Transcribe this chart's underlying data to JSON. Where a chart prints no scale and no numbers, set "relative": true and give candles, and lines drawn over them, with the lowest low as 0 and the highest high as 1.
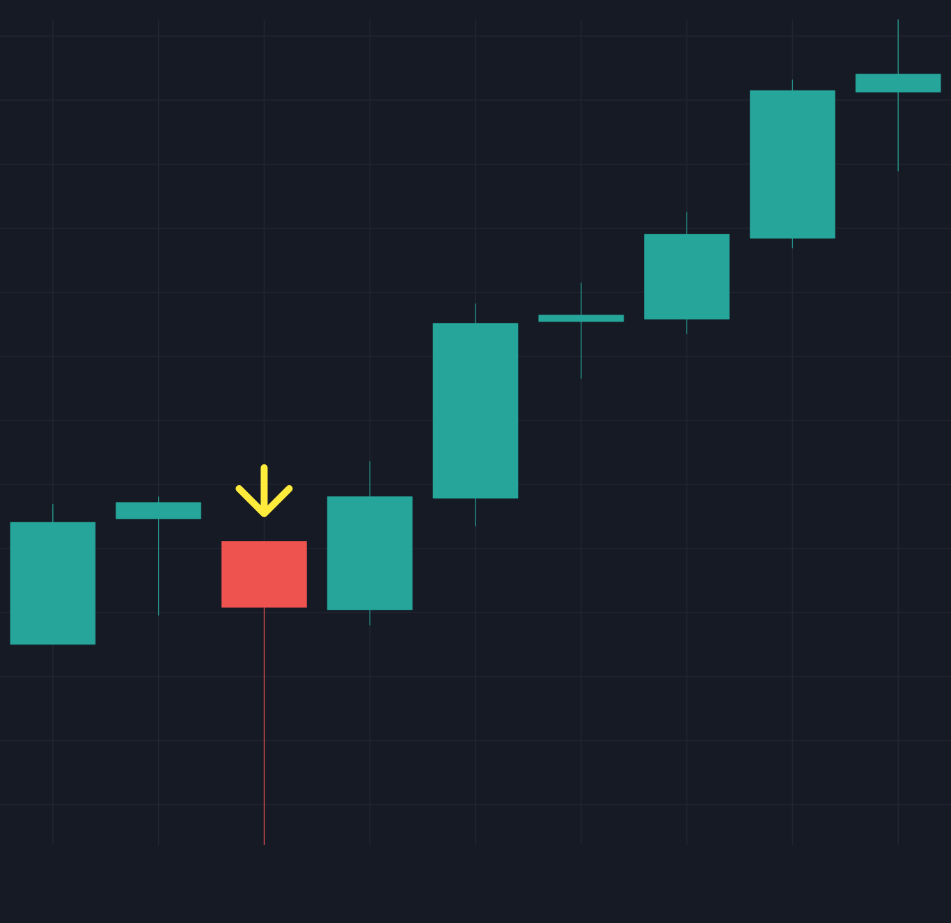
{
  "chart_data": {
    "type": "candlestick",
    "relative": true,
    "categories": [
      null,
      null,
      null,
      null,
      null,
      null,
      null,
      null,
      null
    ],
    "ohlc": [
      [
        0.243,
        0.413,
        0.243,
        0.391
      ],
      [
        0.395,
        0.422,
        0.278,
        0.415
      ],
      [
        0.368,
        0.368,
        0,
        0.288
      ],
      [
        0.285,
        0.465,
        0.266,
        0.422
      ],
      [
        0.42,
        0.656,
        0.386,
        0.632
      ],
      [
        0.634,
        0.681,
        0.565,
        0.642
      ],
      [
        0.637,
        0.767,
        0.619,
        0.74
      ],
      [
        0.735,
        0.927,
        0.723,
        0.914
      ],
      [
        0.912,
        1,
        0.816,
        0.934
      ]
    ],
    "colors": [
      "#26a69a",
      "#26a69a",
      "#ef5350",
      "#26a69a",
      "#26a69a",
      "#26a69a",
      "#26a69a",
      "#26a69a",
      "#26a69a"
    ],
    "grid": true
  }
}
